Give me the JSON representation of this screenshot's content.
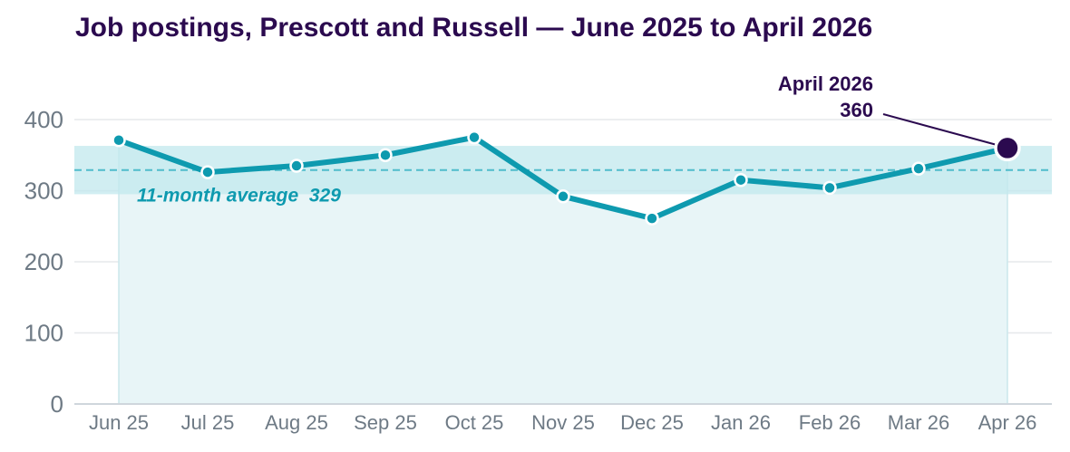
{
  "chart_data": {
    "type": "line",
    "title": "Job postings, Prescott and Russell — June 2025 to April 2026",
    "categories": [
      "Jun 25",
      "Jul 25",
      "Aug 25",
      "Sep 25",
      "Oct 25",
      "Nov 25",
      "Dec 25",
      "Jan 26",
      "Feb 26",
      "Mar 26",
      "Apr 26"
    ],
    "series": [
      {
        "values": [
          371,
          326,
          335,
          350,
          375,
          292,
          261,
          315,
          304,
          331,
          360
        ]
      }
    ],
    "ylim": [
      0,
      400
    ],
    "yticks": [
      0,
      100,
      200,
      300,
      400
    ],
    "grid": true,
    "average": {
      "label": "11-month average  329",
      "value": 329
    },
    "band": {
      "low": 295,
      "high": 363
    },
    "callout": {
      "title": "April 2026",
      "value": "360"
    },
    "colors": {
      "line": "#0e9aaf",
      "area": "#e8f5f7",
      "band": "#c2e8ee",
      "highlight": "#2b0a4f",
      "title": "#2b0a4f",
      "grid": "#e6e8eb"
    }
  }
}
